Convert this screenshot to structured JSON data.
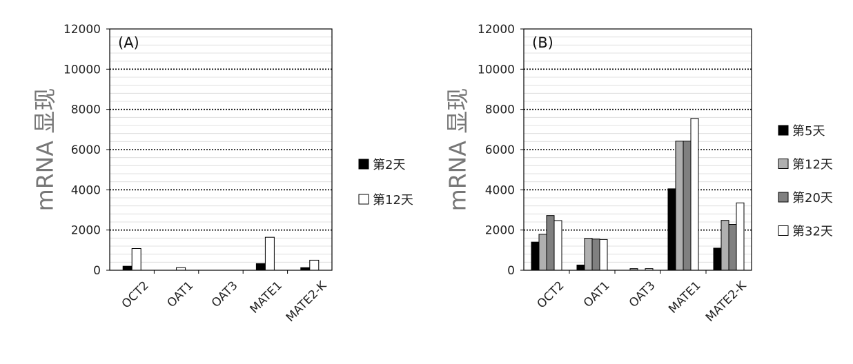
{
  "chart_data": [
    {
      "type": "bar",
      "panel_label": "(A)",
      "ylabel": "mRNA 显现",
      "ylim": [
        0,
        12000
      ],
      "yticks": [
        "0",
        "2000",
        "4000",
        "6000",
        "8000",
        "10000",
        "12000"
      ],
      "categories": [
        "OCT2",
        "OAT1",
        "OAT3",
        "MATE1",
        "MATE2-K"
      ],
      "series": [
        {
          "name": "第2天",
          "color": "#000000",
          "values": [
            200,
            0,
            0,
            330,
            130
          ]
        },
        {
          "name": "第12天",
          "color": "#ffffff",
          "values": [
            1080,
            130,
            0,
            1640,
            500
          ]
        }
      ],
      "grid": true,
      "legend": "right"
    },
    {
      "type": "bar",
      "panel_label": "(B)",
      "ylabel": "mRNA 显现",
      "ylim": [
        0,
        12000
      ],
      "yticks": [
        "0",
        "2000",
        "4000",
        "6000",
        "8000",
        "10000",
        "12000"
      ],
      "categories": [
        "OCT2",
        "OAT1",
        "OAT3",
        "MATE1",
        "MATE2-K"
      ],
      "series": [
        {
          "name": "第5天",
          "color": "#000000",
          "values": [
            1400,
            260,
            0,
            4050,
            1100
          ]
        },
        {
          "name": "第12天",
          "color": "#b0b0b0",
          "values": [
            1790,
            1590,
            80,
            6420,
            2480
          ]
        },
        {
          "name": "第20天",
          "color": "#808080",
          "values": [
            2720,
            1550,
            0,
            6420,
            2280
          ]
        },
        {
          "name": "第32天",
          "color": "#ffffff",
          "values": [
            2470,
            1530,
            80,
            7550,
            3350
          ]
        }
      ],
      "grid": true,
      "legend": "right"
    }
  ]
}
